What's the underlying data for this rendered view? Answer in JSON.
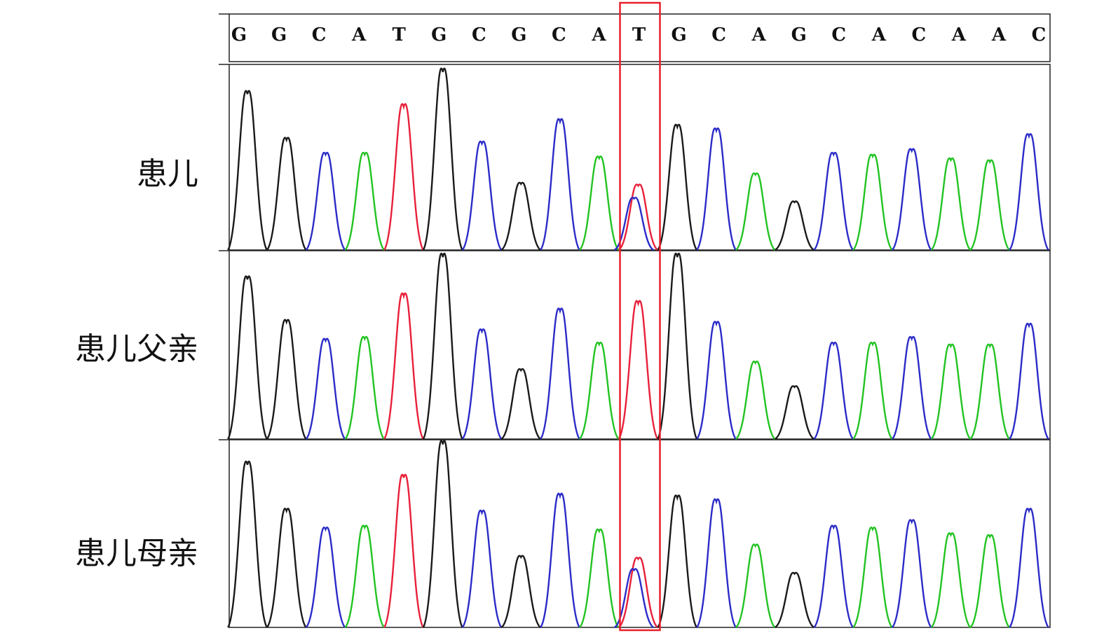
{
  "sequence": [
    "G",
    "G",
    "C",
    "A",
    "T",
    "G",
    "C",
    "G",
    "C",
    "A",
    "T",
    "G",
    "C",
    "A",
    "G",
    "C",
    "A",
    "C",
    "A",
    "A",
    "C"
  ],
  "highlight_index": 10,
  "base_colors": {
    "A": "#22c322",
    "C": "#2b2bc8",
    "G": "#1a1a1a",
    "T": "#e8203a"
  },
  "highlight_color": "#e8202a",
  "tracks": [
    {
      "label": "患儿",
      "peaks": [
        {
          "base": "G",
          "h": 0.85
        },
        {
          "base": "G",
          "h": 0.6
        },
        {
          "base": "C",
          "h": 0.52
        },
        {
          "base": "A",
          "h": 0.52
        },
        {
          "base": "T",
          "h": 0.78
        },
        {
          "base": "G",
          "h": 0.97
        },
        {
          "base": "C",
          "h": 0.58
        },
        {
          "base": "G",
          "h": 0.36
        },
        {
          "base": "C",
          "h": 0.7
        },
        {
          "base": "A",
          "h": 0.5
        },
        {
          "base": "T",
          "h": 0.35
        },
        {
          "base": "C",
          "h": 0.28
        },
        {
          "base": "G",
          "h": 0.67
        },
        {
          "base": "C",
          "h": 0.65
        },
        {
          "base": "A",
          "h": 0.41
        },
        {
          "base": "G",
          "h": 0.26
        },
        {
          "base": "C",
          "h": 0.52
        },
        {
          "base": "A",
          "h": 0.51
        },
        {
          "base": "C",
          "h": 0.54
        },
        {
          "base": "A",
          "h": 0.49
        },
        {
          "base": "A",
          "h": 0.48
        },
        {
          "base": "C",
          "h": 0.62
        }
      ]
    },
    {
      "label": "患儿父亲",
      "peaks": [
        {
          "base": "G",
          "h": 0.86
        },
        {
          "base": "G",
          "h": 0.63
        },
        {
          "base": "C",
          "h": 0.53
        },
        {
          "base": "A",
          "h": 0.54
        },
        {
          "base": "T",
          "h": 0.77
        },
        {
          "base": "G",
          "h": 0.98
        },
        {
          "base": "C",
          "h": 0.58
        },
        {
          "base": "G",
          "h": 0.37
        },
        {
          "base": "C",
          "h": 0.69
        },
        {
          "base": "A",
          "h": 0.51
        },
        {
          "base": "T",
          "h": 0.73
        },
        {
          "base": "G",
          "h": 0.98
        },
        {
          "base": "C",
          "h": 0.62
        },
        {
          "base": "A",
          "h": 0.41
        },
        {
          "base": "G",
          "h": 0.28
        },
        {
          "base": "C",
          "h": 0.51
        },
        {
          "base": "A",
          "h": 0.51
        },
        {
          "base": "C",
          "h": 0.54
        },
        {
          "base": "A",
          "h": 0.5
        },
        {
          "base": "A",
          "h": 0.5
        },
        {
          "base": "C",
          "h": 0.61
        }
      ]
    },
    {
      "label": "患儿母亲",
      "peaks": [
        {
          "base": "G",
          "h": 0.88
        },
        {
          "base": "G",
          "h": 0.63
        },
        {
          "base": "C",
          "h": 0.53
        },
        {
          "base": "A",
          "h": 0.54
        },
        {
          "base": "T",
          "h": 0.81
        },
        {
          "base": "G",
          "h": 0.99
        },
        {
          "base": "C",
          "h": 0.62
        },
        {
          "base": "G",
          "h": 0.38
        },
        {
          "base": "C",
          "h": 0.71
        },
        {
          "base": "A",
          "h": 0.52
        },
        {
          "base": "T",
          "h": 0.37
        },
        {
          "base": "C",
          "h": 0.31
        },
        {
          "base": "G",
          "h": 0.7
        },
        {
          "base": "C",
          "h": 0.68
        },
        {
          "base": "A",
          "h": 0.44
        },
        {
          "base": "G",
          "h": 0.29
        },
        {
          "base": "C",
          "h": 0.54
        },
        {
          "base": "A",
          "h": 0.53
        },
        {
          "base": "C",
          "h": 0.57
        },
        {
          "base": "A",
          "h": 0.5
        },
        {
          "base": "A",
          "h": 0.49
        },
        {
          "base": "C",
          "h": 0.63
        }
      ]
    }
  ]
}
